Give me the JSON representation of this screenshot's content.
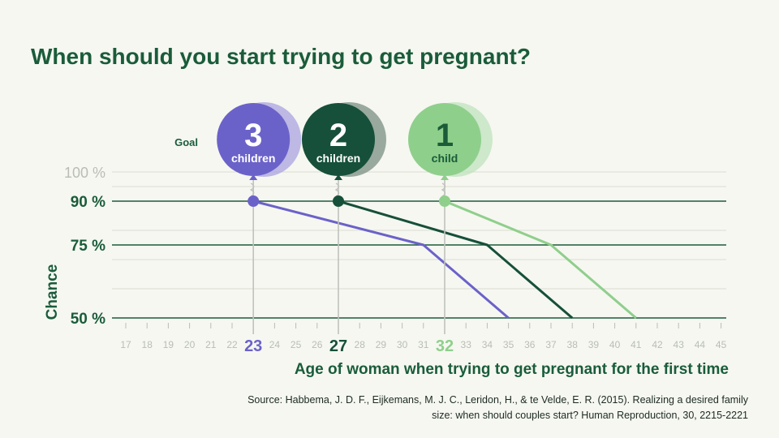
{
  "title": "When should you start trying to get pregnant?",
  "source": "Source: Habbema, J. D. F., Eijkemans, M. J. C., Leridon, H., & te Velde, E. R. (2015). Realizing a desired family size: when should couples start? Human Reproduction, 30, 2215-2221",
  "colors": {
    "bg": "#f6f7f1",
    "dark_green": "#1a5c3a",
    "purple": "#6b62c9",
    "purple_light": "#a9a3df",
    "deep_green": "#16503a",
    "deep_green_shadow": "#7a8f82",
    "light_green": "#8fcf8c",
    "light_green_shadow": "#bfe3bc",
    "grid": "#d9ddd2",
    "tick": "#b9bdb6"
  },
  "chart_data": {
    "type": "line",
    "xlabel": "Age of woman when trying to get pregnant for the first time",
    "ylabel": "Chance",
    "x_ticks": [
      17,
      18,
      19,
      20,
      21,
      22,
      23,
      24,
      25,
      26,
      27,
      28,
      29,
      30,
      31,
      32,
      33,
      34,
      35,
      36,
      37,
      38,
      39,
      40,
      41,
      42,
      43,
      44,
      45
    ],
    "xlim": [
      17,
      45
    ],
    "ylim": [
      50,
      100
    ],
    "y_ticks": [
      {
        "value": 100,
        "label": "100 %",
        "emphasis": false
      },
      {
        "value": 90,
        "label": "90 %",
        "emphasis": true
      },
      {
        "value": 75,
        "label": "75 %",
        "emphasis": true
      },
      {
        "value": 50,
        "label": "50 %",
        "emphasis": true
      }
    ],
    "minor_gridlines": [
      95,
      80,
      70,
      60
    ],
    "goal_label": "Goal",
    "series": [
      {
        "name": "3 children",
        "number": "3",
        "word": "children",
        "color_key": "purple",
        "shadow_key": "purple_light",
        "highlight_age": 23,
        "highlight_label": "23",
        "points": [
          [
            23,
            90
          ],
          [
            31,
            75
          ],
          [
            35,
            50
          ]
        ]
      },
      {
        "name": "2 children",
        "number": "2",
        "word": "children",
        "color_key": "deep_green",
        "shadow_key": "deep_green_shadow",
        "highlight_age": 27,
        "highlight_label": "27",
        "points": [
          [
            27,
            90
          ],
          [
            34,
            75
          ],
          [
            38,
            50
          ]
        ]
      },
      {
        "name": "1 child",
        "number": "1",
        "word": "child",
        "color_key": "light_green",
        "shadow_key": "light_green_shadow",
        "highlight_age": 32,
        "highlight_label": "32",
        "points": [
          [
            32,
            90
          ],
          [
            37,
            75
          ],
          [
            41,
            50
          ]
        ]
      }
    ]
  }
}
